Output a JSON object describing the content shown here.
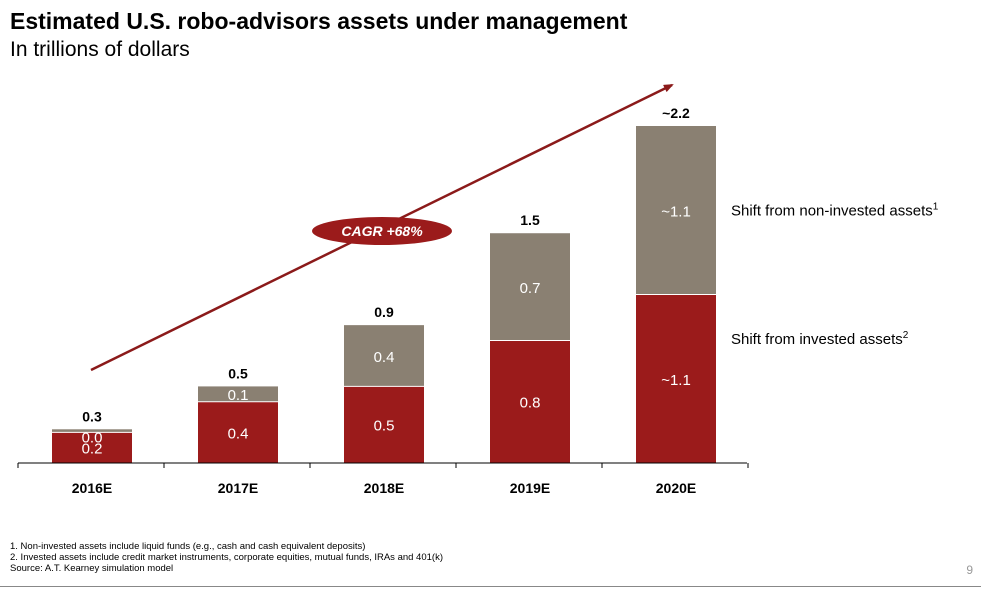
{
  "title": "Estimated U.S. robo-advisors assets under management",
  "subtitle": "In trillions of dollars",
  "colors": {
    "invested": "#9b1b1b",
    "non_invested": "#8a8072",
    "arrow": "#8b1a1a"
  },
  "chart_data": {
    "type": "bar",
    "stacked": true,
    "categories": [
      "2016E",
      "2017E",
      "2018E",
      "2019E",
      "2020E"
    ],
    "series": [
      {
        "name": "Shift from invested assets",
        "footnote_marker": "2",
        "values": [
          0.2,
          0.4,
          0.5,
          0.8,
          1.1
        ],
        "labels": [
          "0.2",
          "0.4",
          "0.5",
          "0.8",
          "~1.1"
        ]
      },
      {
        "name": "Shift from non-invested assets",
        "footnote_marker": "1",
        "values": [
          0.02,
          0.1,
          0.4,
          0.7,
          1.1
        ],
        "labels": [
          "0.0",
          "0.1",
          "0.4",
          "0.7",
          "~1.1"
        ]
      }
    ],
    "totals": [
      "0.3",
      "0.5",
      "0.9",
      "1.5",
      "~2.2"
    ],
    "ylim": [
      0,
      2.2
    ],
    "annotation": "CAGR +68%"
  },
  "footnotes": [
    "1. Non-invested assets include liquid funds (e.g., cash and cash equivalent deposits)",
    "2. Invested assets include credit market instruments, corporate equities, mutual funds, IRAs and 401(k)",
    "Source: A.T. Kearney simulation model"
  ],
  "page_number": "9"
}
